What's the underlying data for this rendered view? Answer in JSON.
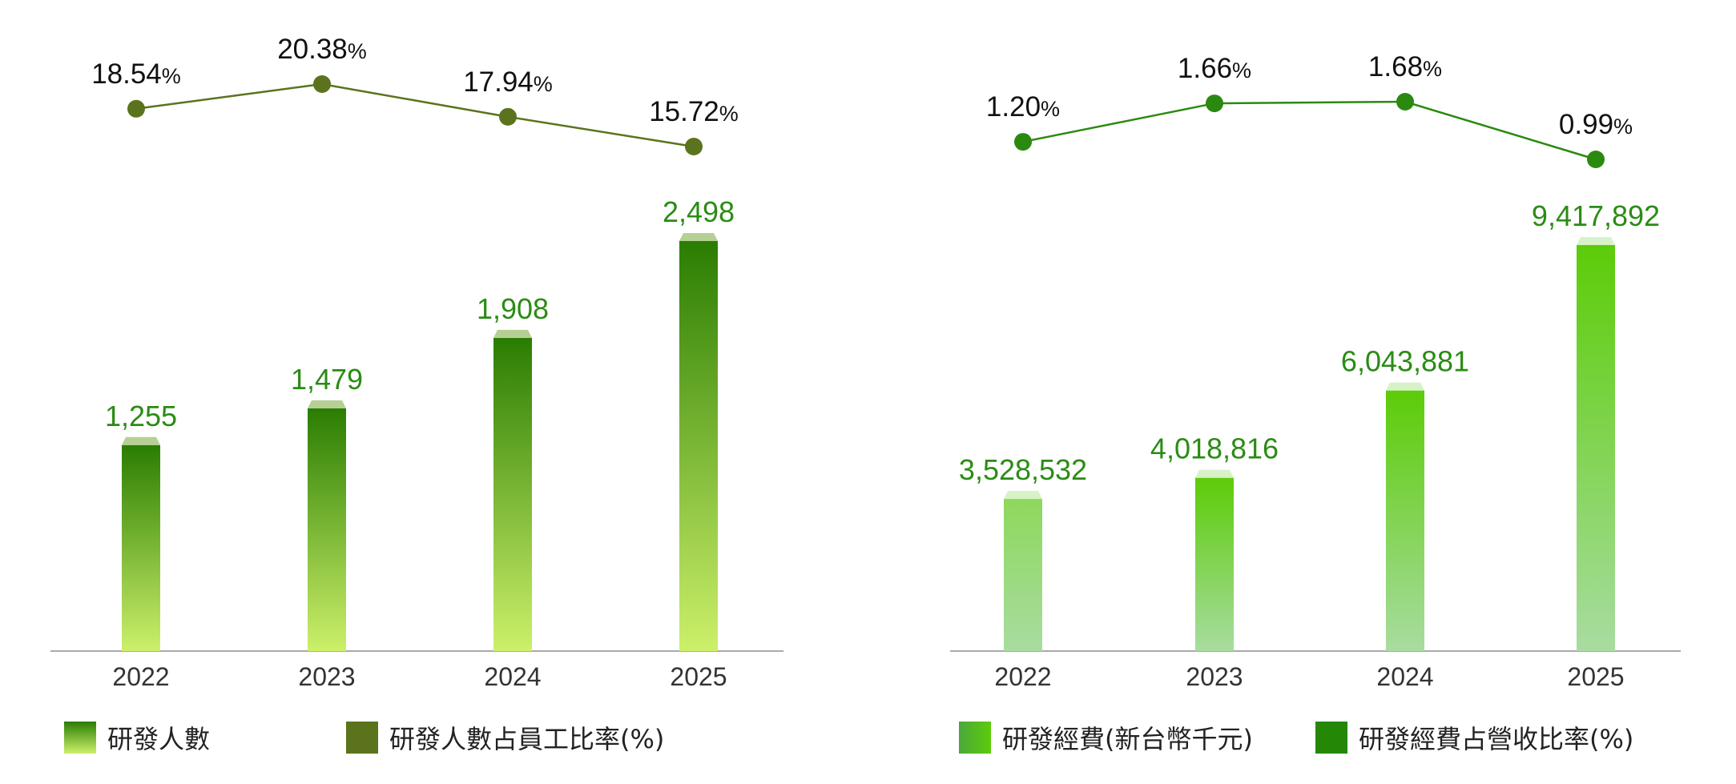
{
  "chart_data": [
    {
      "type": "bar",
      "categories": [
        "2022",
        "2023",
        "2024",
        "2025"
      ],
      "series": [
        {
          "name": "研發人數",
          "type": "bar",
          "values": [
            1255,
            1479,
            1908,
            2498
          ],
          "labels": [
            "1,255",
            "1,479",
            "1,908",
            "2,498"
          ]
        },
        {
          "name": "研發人數占員工比率(%)",
          "type": "line",
          "values": [
            18.54,
            20.38,
            17.94,
            15.72
          ],
          "labels": [
            "18.54",
            "20.38",
            "17.94",
            "15.72"
          ],
          "unit": "%"
        }
      ],
      "colors": {
        "bar_top": "#2a7d02",
        "bar_bottom": "#ccf06a",
        "bar_cap": "#b6cf94",
        "bar_label": "#2a8c14",
        "line": "#5b731c",
        "line_label": "#111111"
      }
    },
    {
      "type": "bar",
      "categories": [
        "2022",
        "2023",
        "2024",
        "2025"
      ],
      "series": [
        {
          "name": "研發經費(新台幣千元)",
          "type": "bar",
          "values": [
            3528532,
            4018816,
            6043881,
            9417892
          ],
          "labels": [
            "3,528,532",
            "4,018,816",
            "6,043,881",
            "9,417,892"
          ]
        },
        {
          "name": "研發經費占營收比率(%)",
          "type": "line",
          "values": [
            1.2,
            1.66,
            1.68,
            0.99
          ],
          "labels": [
            "1.20",
            "1.66",
            "1.68",
            "0.99"
          ],
          "unit": "%"
        }
      ],
      "colors": {
        "bar_top": "#5ccc08",
        "bar_bottom": "#a8dca0",
        "bar_cap": "#d8f2c8",
        "bar_label": "#2a8c14",
        "line": "#2a8a10",
        "line_label": "#111111"
      }
    }
  ],
  "legend": {
    "left": [
      {
        "label": "研發人數",
        "swatch": "gradient",
        "colors": [
          "#2a7d02",
          "#ccf06a"
        ]
      },
      {
        "label": "研發人數占員工比率(%)",
        "swatch": "solid",
        "colors": [
          "#5b731c"
        ]
      }
    ],
    "right": [
      {
        "label": "研發經費(新台幣千元)",
        "swatch": "gradient-h",
        "colors": [
          "#4aa83c",
          "#5ccc08"
        ]
      },
      {
        "label": "研發經費占營收比率(%)",
        "swatch": "solid",
        "colors": [
          "#258706"
        ]
      }
    ]
  }
}
